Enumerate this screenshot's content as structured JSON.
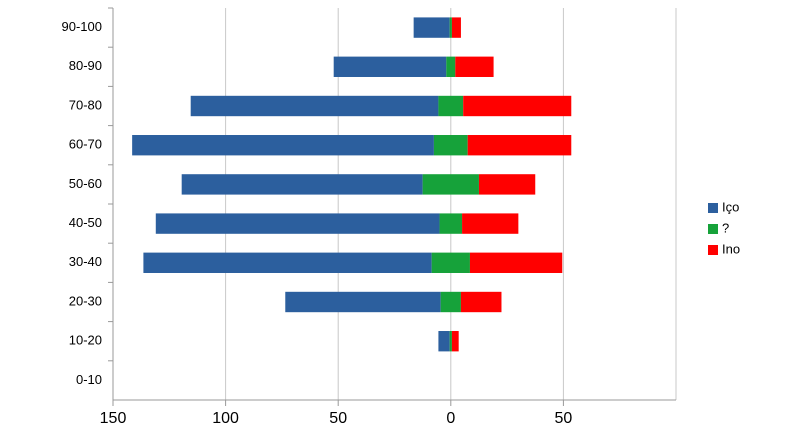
{
  "chart_data": {
    "type": "diverging-bar",
    "categories": [
      "90-100",
      "80-90",
      "70-80",
      "60-70",
      "50-60",
      "40-50",
      "30-40",
      "20-30",
      "10-20",
      "0-10"
    ],
    "series": [
      {
        "name": "Içо",
        "color": "#2c5f9e",
        "values": [
          -16,
          -50,
          -110,
          -134,
          -107,
          -126,
          -128,
          -69,
          -5,
          0
        ]
      },
      {
        "name": "?",
        "color": "#16a23a",
        "values": [
          1,
          4,
          11,
          15,
          25,
          10,
          17,
          9,
          1,
          0
        ]
      },
      {
        "name": "Ino",
        "color": "#ff0000",
        "values": [
          4,
          17,
          48,
          46,
          25,
          25,
          41,
          18,
          3,
          0
        ]
      }
    ],
    "xlim": [
      -150,
      100
    ],
    "xticks": [
      {
        "value": -150,
        "label": "150"
      },
      {
        "value": -100,
        "label": "100"
      },
      {
        "value": -50,
        "label": "50"
      },
      0,
      50
    ],
    "grid": true,
    "legend": "right"
  }
}
